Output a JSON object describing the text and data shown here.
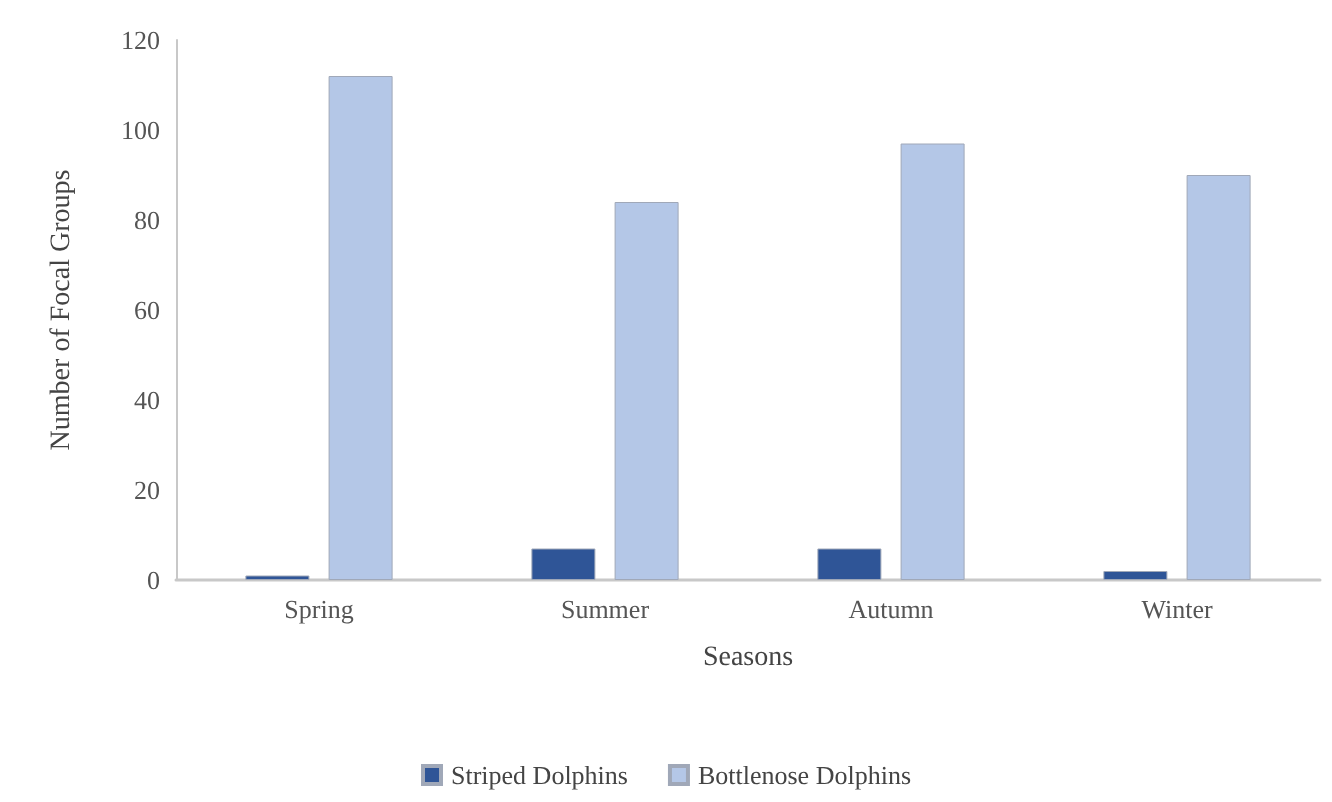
{
  "chart_data": {
    "type": "bar",
    "xlabel": "Seasons",
    "ylabel": "Number of Focal Groups",
    "categories": [
      "Spring",
      "Summer",
      "Autumn",
      "Winter"
    ],
    "series": [
      {
        "name": "Striped Dolphins",
        "color": "#2f5597",
        "values": [
          1,
          7,
          7,
          2
        ]
      },
      {
        "name": "Bottlenose Dolphins",
        "color": "#b4c7e7",
        "values": [
          112,
          84,
          97,
          90
        ]
      }
    ],
    "ylim": [
      0,
      120
    ],
    "yticks": [
      0,
      20,
      40,
      60,
      80,
      100,
      120
    ],
    "grid": false,
    "legend": "bottom"
  }
}
